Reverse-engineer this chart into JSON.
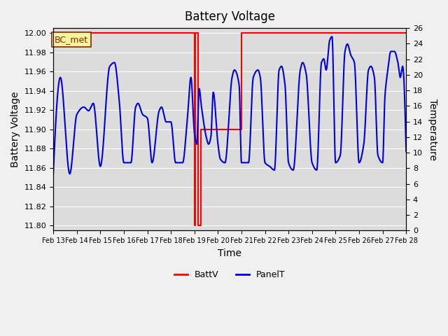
{
  "title": "Battery Voltage",
  "xlabel": "Time",
  "ylabel_left": "Battery Voltage",
  "ylabel_right": "Temperature",
  "xlim": [
    0,
    15
  ],
  "ylim_left": [
    11.8,
    12.0
  ],
  "ylim_right": [
    0,
    26
  ],
  "x_tick_labels": [
    "Feb 13",
    "Feb 14",
    "Feb 15",
    "Feb 16",
    "Feb 17",
    "Feb 18",
    "Feb 19",
    "Feb 20",
    "Feb 21",
    "Feb 22",
    "Feb 23",
    "Feb 24",
    "Feb 25",
    "Feb 26",
    "Feb 27",
    "Feb 28"
  ],
  "annotation_label": "BC_met",
  "bg_color": "#dcdcdc",
  "grid_color": "#ffffff",
  "battv_color": "#ff0000",
  "panelt_color": "#0000dd",
  "fig_bg": "#f0f0f0"
}
